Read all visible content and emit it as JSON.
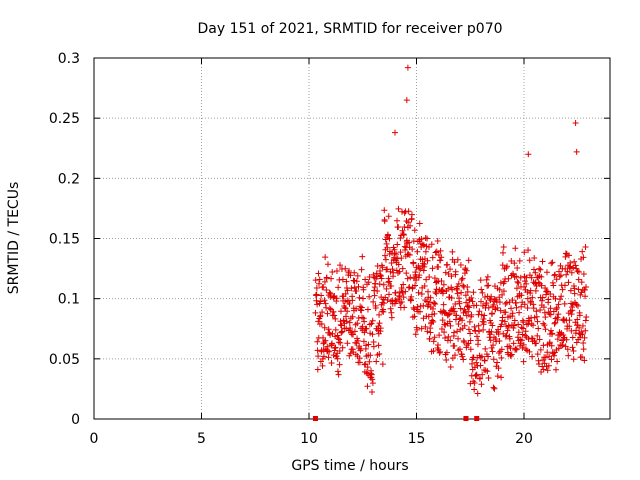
{
  "chart_data": {
    "type": "scatter",
    "title": "Day 151 of 2021, SRMTID for receiver p070",
    "xlabel": "GPS time / hours",
    "ylabel": "SRMTID / TECUs",
    "xlim": [
      0,
      24
    ],
    "ylim": [
      0,
      0.3
    ],
    "x_ticks": [
      0,
      5,
      10,
      15,
      20
    ],
    "x_tick_labels": [
      "0",
      "5",
      "10",
      "15",
      "20"
    ],
    "y_ticks": [
      0,
      0.05,
      0.1,
      0.15,
      0.2,
      0.25,
      0.3
    ],
    "y_tick_labels": [
      "0",
      "0.05",
      "0.1",
      "0.15",
      "0.2",
      "0.25",
      "0.3"
    ],
    "grid": true,
    "marker": "+",
    "color": "#e00000",
    "data_range_hours": [
      10.3,
      22.9
    ],
    "zero_markers_x": [
      10.3,
      17.3,
      17.8
    ],
    "notable_peaks": [
      {
        "x": 14.6,
        "y": 0.292
      },
      {
        "x": 14.55,
        "y": 0.265
      },
      {
        "x": 14.0,
        "y": 0.238
      },
      {
        "x": 20.2,
        "y": 0.22
      },
      {
        "x": 22.4,
        "y": 0.246
      },
      {
        "x": 22.45,
        "y": 0.222
      }
    ]
  }
}
